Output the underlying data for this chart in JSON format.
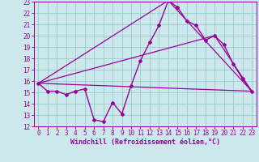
{
  "xlabel": "Windchill (Refroidissement éolien,°C)",
  "xlim": [
    -0.5,
    23.5
  ],
  "ylim": [
    12,
    23
  ],
  "yticks": [
    12,
    13,
    14,
    15,
    16,
    17,
    18,
    19,
    20,
    21,
    22,
    23
  ],
  "xticks": [
    0,
    1,
    2,
    3,
    4,
    5,
    6,
    7,
    8,
    9,
    10,
    11,
    12,
    13,
    14,
    15,
    16,
    17,
    18,
    19,
    20,
    21,
    22,
    23
  ],
  "bg_color": "#cce8ec",
  "grid_color": "#99cccc",
  "line_color": "#990099",
  "lines": [
    {
      "x": [
        0,
        1,
        2,
        3,
        4,
        5,
        6,
        7,
        8,
        9,
        10,
        11,
        12,
        13,
        14,
        15,
        16,
        17,
        18,
        19,
        20,
        21,
        22,
        23
      ],
      "y": [
        15.8,
        15.1,
        15.1,
        14.8,
        15.1,
        15.3,
        12.6,
        12.4,
        14.1,
        13.1,
        15.6,
        17.8,
        19.4,
        20.9,
        23.1,
        22.5,
        21.3,
        20.9,
        19.6,
        20.0,
        19.2,
        17.5,
        16.2,
        15.1
      ],
      "marker": "D",
      "markersize": 2.0,
      "linewidth": 1.0
    },
    {
      "x": [
        0,
        23
      ],
      "y": [
        15.8,
        15.1
      ],
      "marker": null,
      "linewidth": 0.9
    },
    {
      "x": [
        0,
        14,
        23
      ],
      "y": [
        15.8,
        23.1,
        15.1
      ],
      "marker": null,
      "linewidth": 0.9
    },
    {
      "x": [
        0,
        19,
        23
      ],
      "y": [
        15.8,
        20.0,
        15.1
      ],
      "marker": null,
      "linewidth": 0.9
    }
  ]
}
